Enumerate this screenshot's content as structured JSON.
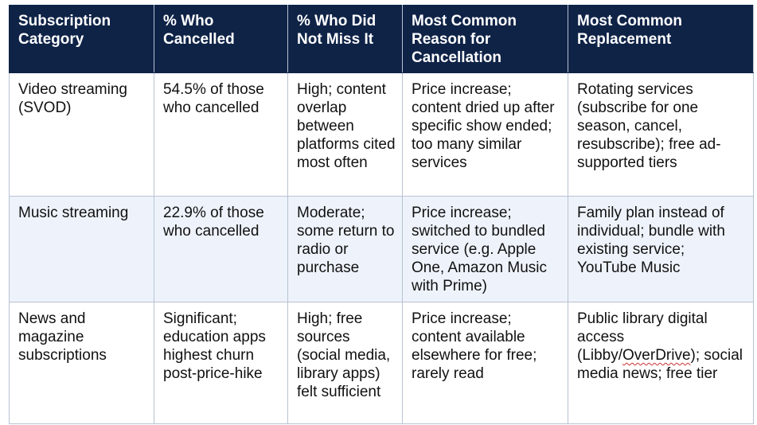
{
  "table": {
    "headers": [
      "Subscription Category",
      "% Who Cancelled",
      "% Who Did Not Miss It",
      "Most Common Reason for Cancellation",
      "Most Common Replacement"
    ],
    "rows": [
      {
        "category": "Video streaming (SVOD)",
        "cancelled": "54.5% of those who cancelled",
        "not_missed": "High; content overlap between platforms cited most often",
        "reason": "Price increase; content dried up after specific show ended; too many similar services",
        "replacement": "Rotating services (subscribe for one season, cancel, resubscribe); free ad-supported tiers"
      },
      {
        "category": "Music streaming",
        "cancelled": "22.9% of those who cancelled",
        "not_missed": "Moderate; some return to radio or purchase",
        "reason": "Price increase; switched to bundled service (e.g. Apple One, Amazon Music with Prime)",
        "replacement": "Family plan instead of individual; bundle with existing service; YouTube Music"
      },
      {
        "category": "News and magazine subscriptions",
        "cancelled": "Significant; education apps highest churn post-price-hike",
        "not_missed": "High; free sources (social media, library apps) felt sufficient",
        "reason": "Price increase; content available elsewhere for free; rarely read",
        "replacement_before": "Public library digital access (Libby/",
        "replacement_flagged": "OverDrive",
        "replacement_after": "); social media news; free tier"
      }
    ]
  }
}
